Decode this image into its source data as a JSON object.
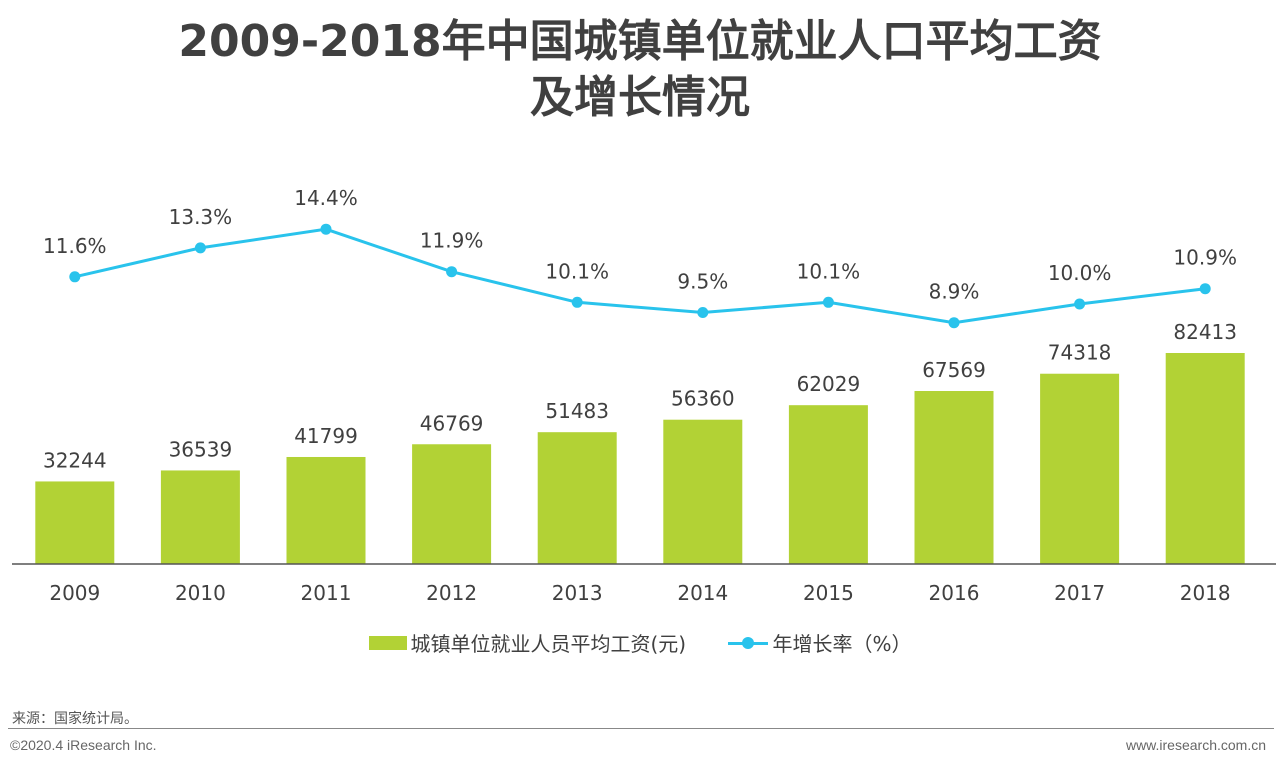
{
  "colors": {
    "bar": "#b2d235",
    "line": "#29c3ec",
    "axis": "#555555",
    "text": "#404040"
  },
  "chart_data": {
    "type": "bar+line",
    "title_line1": "2009-2018年中国城镇单位就业人口平均工资",
    "title_line2": "及增长情况",
    "categories": [
      "2009",
      "2010",
      "2011",
      "2012",
      "2013",
      "2014",
      "2015",
      "2016",
      "2017",
      "2018"
    ],
    "series": [
      {
        "name": "城镇单位就业人员平均工资(元)",
        "type": "bar",
        "values": [
          32244,
          36539,
          41799,
          46769,
          51483,
          56360,
          62029,
          67569,
          74318,
          82413
        ]
      },
      {
        "name": "年增长率（%）",
        "type": "line",
        "values": [
          11.6,
          13.3,
          14.4,
          11.9,
          10.1,
          9.5,
          10.1,
          8.9,
          10.0,
          10.9
        ],
        "labels": [
          "11.6%",
          "13.3%",
          "14.4%",
          "11.9%",
          "10.1%",
          "9.5%",
          "10.1%",
          "8.9%",
          "10.0%",
          "10.9%"
        ]
      }
    ],
    "legend_position": "bottom",
    "grid": false
  },
  "footer": {
    "source": "来源：国家统计局。",
    "copyright": "©2020.4 iResearch Inc.",
    "website": "www.iresearch.com.cn"
  }
}
